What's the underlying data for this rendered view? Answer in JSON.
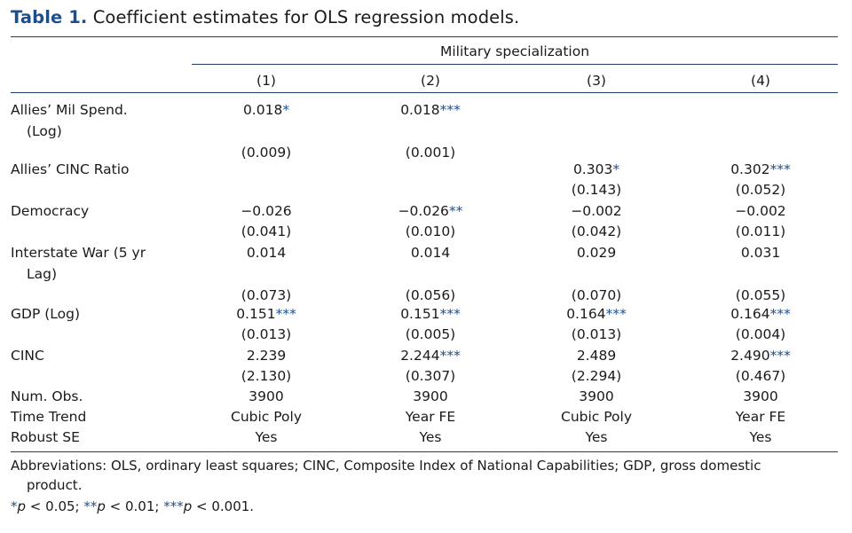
{
  "caption": {
    "label": "Table 1.",
    "text": "Coefficient estimates for OLS regression models."
  },
  "spanner": "Military specialization",
  "columns": [
    "(1)",
    "(2)",
    "(3)",
    "(4)"
  ],
  "rows": [
    {
      "label": [
        "Allies’ Mil Spend.",
        "(Log)"
      ],
      "est": [
        {
          "v": "0.018",
          "s": "*"
        },
        {
          "v": "0.018",
          "s": "***"
        },
        null,
        null
      ],
      "se": [
        "(0.009)",
        "(0.001)",
        null,
        null
      ]
    },
    {
      "label": [
        "Allies’ CINC Ratio"
      ],
      "est": [
        null,
        null,
        {
          "v": "0.303",
          "s": "*"
        },
        {
          "v": "0.302",
          "s": "***"
        }
      ],
      "se": [
        null,
        null,
        "(0.143)",
        "(0.052)"
      ]
    },
    {
      "label": [
        "Democracy"
      ],
      "est": [
        {
          "v": "−0.026",
          "s": ""
        },
        {
          "v": "−0.026",
          "s": "**"
        },
        {
          "v": "−0.002",
          "s": ""
        },
        {
          "v": "−0.002",
          "s": ""
        }
      ],
      "se": [
        "(0.041)",
        "(0.010)",
        "(0.042)",
        "(0.011)"
      ]
    },
    {
      "label": [
        "Interstate War (5 yr",
        "Lag)"
      ],
      "est": [
        {
          "v": "0.014",
          "s": ""
        },
        {
          "v": "0.014",
          "s": ""
        },
        {
          "v": "0.029",
          "s": ""
        },
        {
          "v": "0.031",
          "s": ""
        }
      ],
      "se": [
        "(0.073)",
        "(0.056)",
        "(0.070)",
        "(0.055)"
      ]
    },
    {
      "label": [
        "GDP (Log)"
      ],
      "est": [
        {
          "v": "0.151",
          "s": "***"
        },
        {
          "v": "0.151",
          "s": "***"
        },
        {
          "v": "0.164",
          "s": "***"
        },
        {
          "v": "0.164",
          "s": "***"
        }
      ],
      "se": [
        "(0.013)",
        "(0.005)",
        "(0.013)",
        "(0.004)"
      ]
    },
    {
      "label": [
        "CINC"
      ],
      "est": [
        {
          "v": "2.239",
          "s": ""
        },
        {
          "v": "2.244",
          "s": "***"
        },
        {
          "v": "2.489",
          "s": ""
        },
        {
          "v": "2.490",
          "s": "***"
        }
      ],
      "se": [
        "(2.130)",
        "(0.307)",
        "(2.294)",
        "(0.467)"
      ]
    }
  ],
  "summary": [
    {
      "label": "Num. Obs.",
      "values": [
        "3900",
        "3900",
        "3900",
        "3900"
      ]
    },
    {
      "label": "Time Trend",
      "values": [
        "Cubic Poly",
        "Year FE",
        "Cubic Poly",
        "Year FE"
      ]
    },
    {
      "label": "Robust SE",
      "values": [
        "Yes",
        "Yes",
        "Yes",
        "Yes"
      ]
    }
  ],
  "notes": {
    "abbrev_line1": "Abbreviations: OLS, ordinary least squares; CINC, Composite Index of National Capabilities; GDP, gross domestic",
    "abbrev_line2": "product.",
    "sig": [
      {
        "mark": "*",
        "text": "p < 0.05; "
      },
      {
        "mark": "**",
        "text": "p < 0.01; "
      },
      {
        "mark": "***",
        "text": "p < 0.001."
      }
    ]
  }
}
